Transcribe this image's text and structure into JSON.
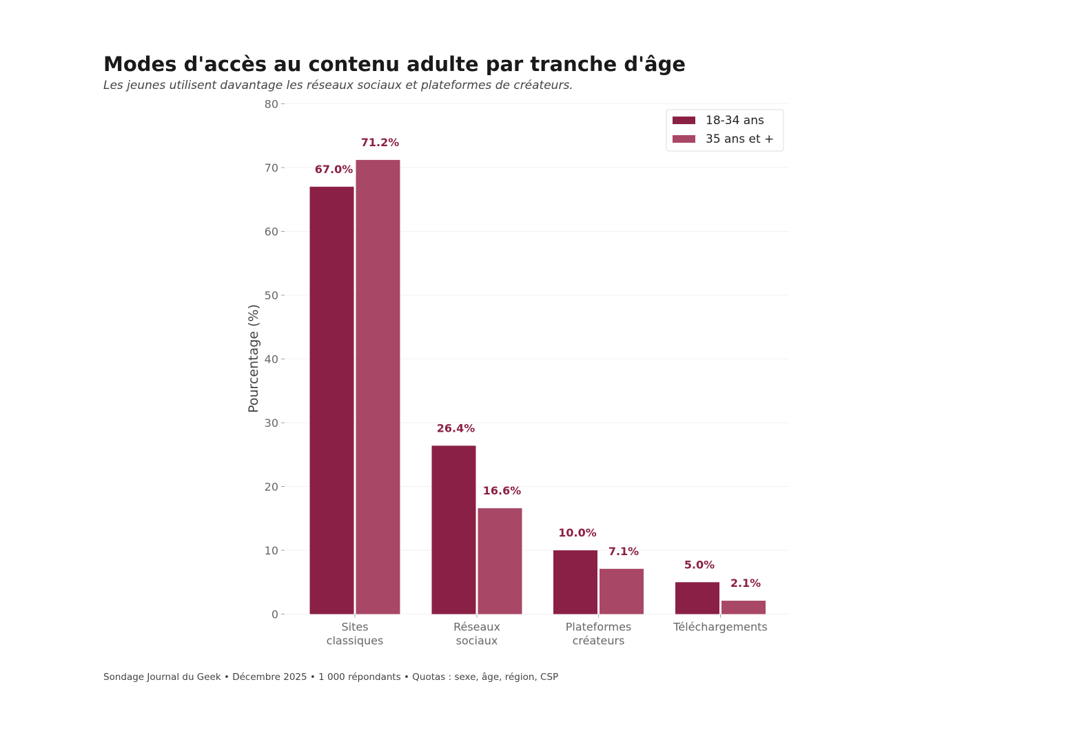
{
  "header": {
    "title": "Modes d'accès au contenu adulte par tranche d'âge",
    "subtitle": "Les jeunes utilisent davantage les réseaux sociaux et plateformes de créateurs."
  },
  "footer": {
    "note": "Sondage Journal du Geek • Décembre 2025 • 1 000 répondants • Quotas : sexe, âge, région, CSP"
  },
  "chart_data": {
    "type": "bar",
    "title": "Modes d'accès au contenu adulte par tranche d'âge",
    "subtitle": "Les jeunes utilisent davantage les réseaux sociaux et plateformes de créateurs.",
    "xlabel": "",
    "ylabel": "Pourcentage (%)",
    "ylim": [
      0,
      80
    ],
    "yticks": [
      0,
      10,
      20,
      30,
      40,
      50,
      60,
      70,
      80
    ],
    "grid": true,
    "legend_position": "top-right",
    "categories": [
      [
        "Sites",
        "classiques"
      ],
      [
        "Réseaux",
        "sociaux"
      ],
      [
        "Plateformes",
        "créateurs"
      ],
      [
        "Téléchargements"
      ]
    ],
    "series": [
      {
        "name": "18-34 ans",
        "color": "#8b2046",
        "values": [
          67.0,
          26.4,
          10.0,
          5.0
        ],
        "labels": [
          "67.0%",
          "26.4%",
          "10.0%",
          "5.0%"
        ]
      },
      {
        "name": "35 ans et +",
        "color": "#a84766",
        "values": [
          71.2,
          16.6,
          7.1,
          2.1
        ],
        "labels": [
          "71.2%",
          "16.6%",
          "7.1%",
          "2.1%"
        ]
      }
    ],
    "label_color": "#8b2046"
  }
}
